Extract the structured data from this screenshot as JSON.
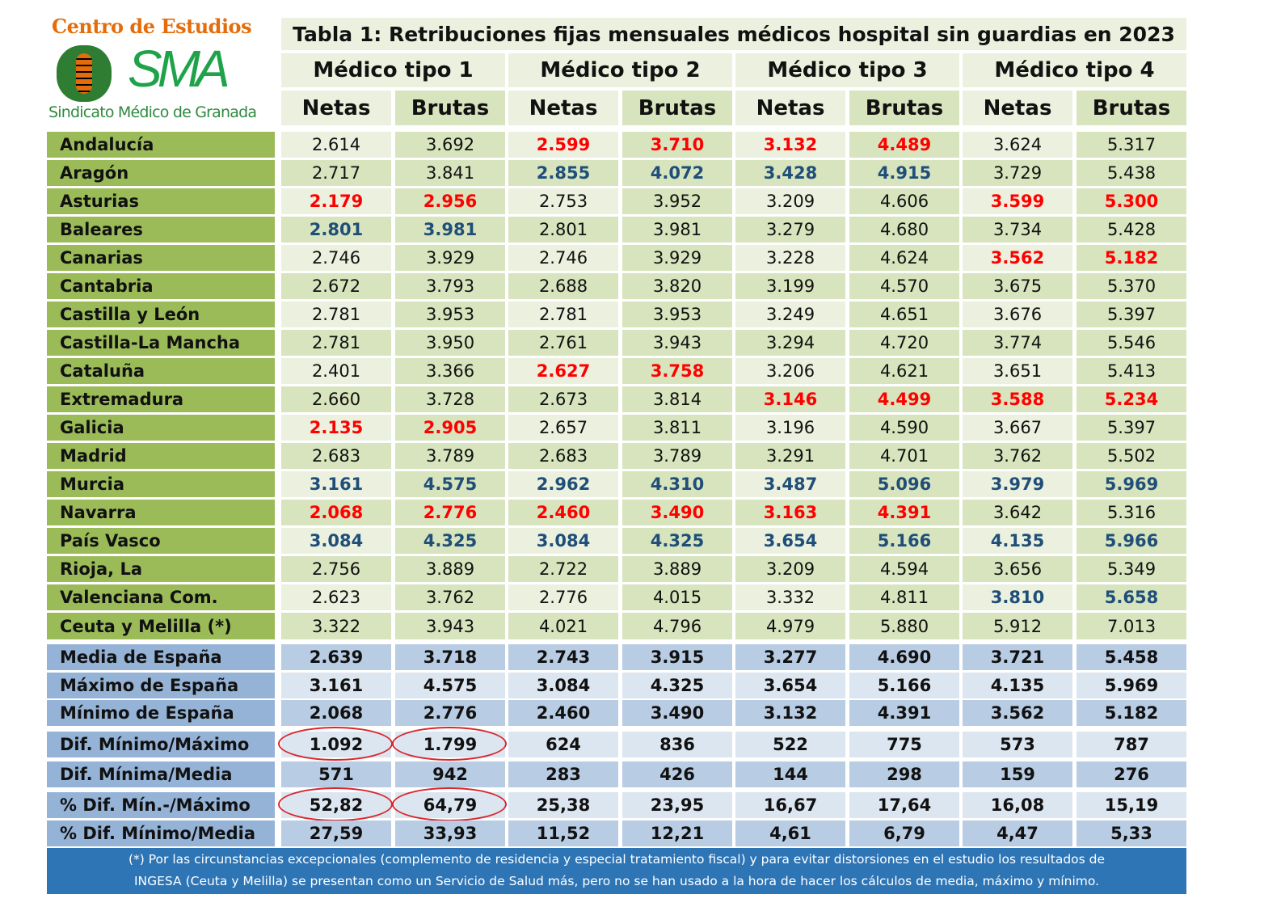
{
  "logo": {
    "top": "Centro de Estudios",
    "mark": "SMA",
    "bottom": "Sindicato Médico de Granada"
  },
  "title": "Tabla 1: Retribuciones fijas mensuales médicos hospital sin guardias en 2023",
  "groups": [
    "Médico tipo 1",
    "Médico tipo 2",
    "Médico tipo 3",
    "Médico tipo 4"
  ],
  "subheaders": [
    "Netas",
    "Brutas"
  ],
  "colors": {
    "label_green": "#9bbb59",
    "light": "#ebf1de",
    "dark": "#d7e4bd",
    "red": "#ff0000",
    "blue": "#1f4e79",
    "sum_label": "#95b3d7",
    "sum_light": "#dce6f1",
    "sum_dark": "#b8cce4",
    "footer": "#2e75b6"
  },
  "rows": [
    {
      "name": "Andalucía",
      "values": [
        "2.614",
        "3.692",
        "2.599",
        "3.710",
        "3.132",
        "4.489",
        "3.624",
        "5.317"
      ],
      "hl": [
        "",
        "r",
        "r",
        ""
      ]
    },
    {
      "name": "Aragón",
      "values": [
        "2.717",
        "3.841",
        "2.855",
        "4.072",
        "3.428",
        "4.915",
        "3.729",
        "5.438"
      ],
      "hl": [
        "",
        "b",
        "b",
        ""
      ]
    },
    {
      "name": "Asturias",
      "values": [
        "2.179",
        "2.956",
        "2.753",
        "3.952",
        "3.209",
        "4.606",
        "3.599",
        "5.300"
      ],
      "hl": [
        "r",
        "",
        "",
        "r"
      ]
    },
    {
      "name": "Baleares",
      "values": [
        "2.801",
        "3.981",
        "2.801",
        "3.981",
        "3.279",
        "4.680",
        "3.734",
        "5.428"
      ],
      "hl": [
        "b",
        "",
        "",
        ""
      ]
    },
    {
      "name": "Canarias",
      "values": [
        "2.746",
        "3.929",
        "2.746",
        "3.929",
        "3.228",
        "4.624",
        "3.562",
        "5.182"
      ],
      "hl": [
        "",
        "",
        "",
        "r"
      ]
    },
    {
      "name": "Cantabria",
      "values": [
        "2.672",
        "3.793",
        "2.688",
        "3.820",
        "3.199",
        "4.570",
        "3.675",
        "5.370"
      ],
      "hl": [
        "",
        "",
        "",
        ""
      ]
    },
    {
      "name": "Castilla y León",
      "values": [
        "2.781",
        "3.953",
        "2.781",
        "3.953",
        "3.249",
        "4.651",
        "3.676",
        "5.397"
      ],
      "hl": [
        "",
        "",
        "",
        ""
      ]
    },
    {
      "name": "Castilla-La Mancha",
      "values": [
        "2.781",
        "3.950",
        "2.761",
        "3.943",
        "3.294",
        "4.720",
        "3.774",
        "5.546"
      ],
      "hl": [
        "",
        "",
        "",
        ""
      ]
    },
    {
      "name": "Cataluña",
      "values": [
        "2.401",
        "3.366",
        "2.627",
        "3.758",
        "3.206",
        "4.621",
        "3.651",
        "5.413"
      ],
      "hl": [
        "",
        "r",
        "",
        ""
      ]
    },
    {
      "name": "Extremadura",
      "values": [
        "2.660",
        "3.728",
        "2.673",
        "3.814",
        "3.146",
        "4.499",
        "3.588",
        "5.234"
      ],
      "hl": [
        "",
        "",
        "r",
        "r"
      ]
    },
    {
      "name": "Galicia",
      "values": [
        "2.135",
        "2.905",
        "2.657",
        "3.811",
        "3.196",
        "4.590",
        "3.667",
        "5.397"
      ],
      "hl": [
        "r",
        "",
        "",
        ""
      ]
    },
    {
      "name": "Madrid",
      "values": [
        "2.683",
        "3.789",
        "2.683",
        "3.789",
        "3.291",
        "4.701",
        "3.762",
        "5.502"
      ],
      "hl": [
        "",
        "",
        "",
        ""
      ]
    },
    {
      "name": "Murcia",
      "values": [
        "3.161",
        "4.575",
        "2.962",
        "4.310",
        "3.487",
        "5.096",
        "3.979",
        "5.969"
      ],
      "hl": [
        "b",
        "b",
        "b",
        "b"
      ]
    },
    {
      "name": "Navarra",
      "values": [
        "2.068",
        "2.776",
        "2.460",
        "3.490",
        "3.163",
        "4.391",
        "3.642",
        "5.316"
      ],
      "hl": [
        "r",
        "r",
        "r",
        ""
      ]
    },
    {
      "name": "País Vasco",
      "values": [
        "3.084",
        "4.325",
        "3.084",
        "4.325",
        "3.654",
        "5.166",
        "4.135",
        "5.966"
      ],
      "hl": [
        "b",
        "b",
        "b",
        "b"
      ]
    },
    {
      "name": "Rioja, La",
      "values": [
        "2.756",
        "3.889",
        "2.722",
        "3.889",
        "3.209",
        "4.594",
        "3.656",
        "5.349"
      ],
      "hl": [
        "",
        "",
        "",
        ""
      ]
    },
    {
      "name": "Valenciana Com.",
      "values": [
        "2.623",
        "3.762",
        "2.776",
        "4.015",
        "3.332",
        "4.811",
        "3.810",
        "5.658"
      ],
      "hl": [
        "",
        "",
        "",
        "b"
      ]
    },
    {
      "name": "Ceuta y Melilla (*)",
      "values": [
        "3.322",
        "3.943",
        "4.021",
        "4.796",
        "4.979",
        "5.880",
        "5.912",
        "7.013"
      ],
      "hl": [
        "",
        "",
        "",
        ""
      ]
    }
  ],
  "summary": [
    {
      "name": "Media de España",
      "values": [
        "2.639",
        "3.718",
        "2.743",
        "3.915",
        "3.277",
        "4.690",
        "3.721",
        "5.458"
      ]
    },
    {
      "name": "Máximo de España",
      "values": [
        "3.161",
        "4.575",
        "3.084",
        "4.325",
        "3.654",
        "5.166",
        "4.135",
        "5.969"
      ]
    },
    {
      "name": "Mínimo de España",
      "values": [
        "2.068",
        "2.776",
        "2.460",
        "3.490",
        "3.132",
        "4.391",
        "3.562",
        "5.182"
      ]
    },
    {
      "name": "Dif. Mínimo/Máximo",
      "values": [
        "1.092",
        "1.799",
        "624",
        "836",
        "522",
        "775",
        "573",
        "787"
      ],
      "circled": [
        0,
        1
      ]
    },
    {
      "name": "Dif. Mínima/Media",
      "values": [
        "571",
        "942",
        "283",
        "426",
        "144",
        "298",
        "159",
        "276"
      ]
    },
    {
      "name": "% Dif. Mín.-/Máximo",
      "values": [
        "52,82",
        "64,79",
        "25,38",
        "23,95",
        "16,67",
        "17,64",
        "16,08",
        "15,19"
      ],
      "circled": [
        0,
        1
      ]
    },
    {
      "name": "% Dif. Mínimo/Media",
      "values": [
        "27,59",
        "33,93",
        "11,52",
        "12,21",
        "4,61",
        "6,79",
        "4,47",
        "5,33"
      ]
    }
  ],
  "footnote": [
    "(*) Por las circunstancias excepcionales (complemento de residencia y especial tratamiento fiscal) y para evitar distorsiones en el estudio los resultados de",
    "INGESA (Ceuta y Melilla) se presentan como un Servicio de Salud más, pero no se han usado a la hora de hacer los cálculos de media, máximo y mínimo."
  ]
}
